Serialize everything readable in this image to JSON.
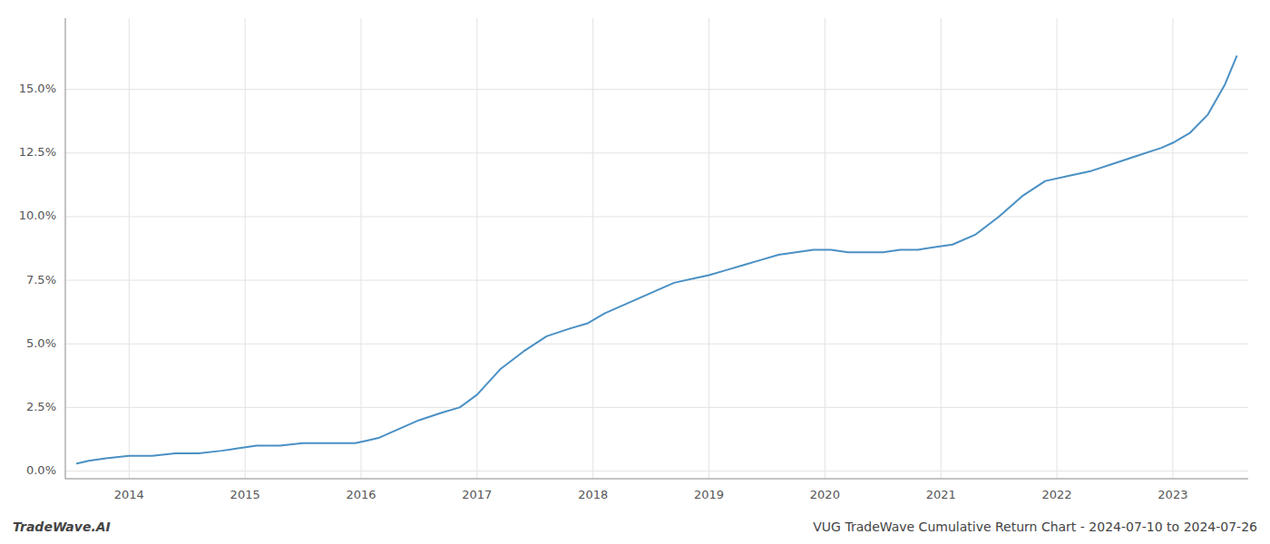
{
  "chart_data": {
    "type": "line",
    "title": "VUG TradeWave Cumulative Return Chart - 2024-07-10 to 2024-07-26",
    "annotations": [
      "TradeWave.AI"
    ],
    "color": "#4a90c4",
    "grid": true,
    "x": [
      2013.55,
      2013.65,
      2013.8,
      2014.0,
      2014.2,
      2014.4,
      2014.6,
      2014.8,
      2014.95,
      2015.1,
      2015.3,
      2015.5,
      2015.7,
      2015.85,
      2015.95,
      2016.05,
      2016.15,
      2016.3,
      2016.5,
      2016.7,
      2016.85,
      2017.0,
      2017.2,
      2017.4,
      2017.6,
      2017.8,
      2017.95,
      2018.1,
      2018.3,
      2018.5,
      2018.7,
      2018.9,
      2019.0,
      2019.15,
      2019.3,
      2019.45,
      2019.6,
      2019.75,
      2019.9,
      2020.05,
      2020.2,
      2020.35,
      2020.5,
      2020.65,
      2020.8,
      2020.95,
      2021.1,
      2021.3,
      2021.5,
      2021.7,
      2021.9,
      2022.1,
      2022.3,
      2022.5,
      2022.7,
      2022.9,
      2023.0,
      2023.15,
      2023.3,
      2023.45,
      2023.55
    ],
    "values": [
      0.003,
      0.004,
      0.005,
      0.006,
      0.006,
      0.007,
      0.007,
      0.008,
      0.009,
      0.01,
      0.01,
      0.011,
      0.011,
      0.011,
      0.011,
      0.012,
      0.013,
      0.016,
      0.02,
      0.023,
      0.025,
      0.03,
      0.04,
      0.047,
      0.053,
      0.056,
      0.058,
      0.062,
      0.066,
      0.07,
      0.074,
      0.076,
      0.077,
      0.079,
      0.081,
      0.083,
      0.085,
      0.086,
      0.087,
      0.087,
      0.086,
      0.086,
      0.086,
      0.087,
      0.087,
      0.088,
      0.089,
      0.093,
      0.1,
      0.108,
      0.114,
      0.116,
      0.118,
      0.121,
      0.124,
      0.127,
      0.129,
      0.133,
      0.14,
      0.152,
      0.163
    ],
    "xlim": [
      2013.45,
      2023.65
    ],
    "ylim": [
      -0.003,
      0.178
    ],
    "xticks": [
      2014,
      2015,
      2016,
      2017,
      2018,
      2019,
      2020,
      2021,
      2022,
      2023
    ],
    "yticks": [
      {
        "value": 0.0,
        "label": "0.0%"
      },
      {
        "value": 0.025,
        "label": "2.5%"
      },
      {
        "value": 0.05,
        "label": "5.0%"
      },
      {
        "value": 0.075,
        "label": "7.5%"
      },
      {
        "value": 0.1,
        "label": "10.0%"
      },
      {
        "value": 0.125,
        "label": "12.5%"
      },
      {
        "value": 0.15,
        "label": "15.0%"
      }
    ]
  }
}
